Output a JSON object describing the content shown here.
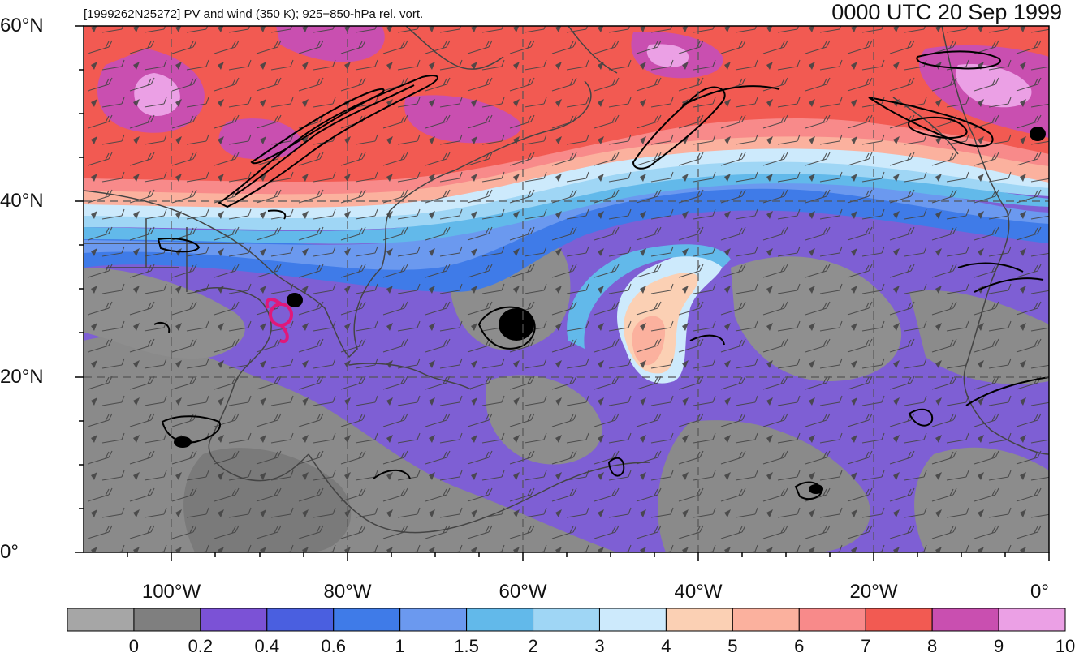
{
  "title_left": "[1999262N25272] PV and wind (350 K); 925−850-hPa rel. vort.",
  "title_right": "0000 UTC 20 Sep 1999",
  "lat_labels": [
    "60°N",
    "40°N",
    "20°N",
    "0°"
  ],
  "lon_labels": [
    "100°W",
    "80°W",
    "60°W",
    "40°W",
    "20°W",
    "0°"
  ],
  "colorbar": {
    "labels": [
      "0",
      "0.2",
      "0.4",
      "0.6",
      "1",
      "1.5",
      "2",
      "3",
      "4",
      "5",
      "6",
      "7",
      "8",
      "9",
      "10"
    ],
    "colors": [
      "#a6a6a6",
      "#7f7f7f",
      "#7b52d6",
      "#4a5fe0",
      "#3f7be8",
      "#6b99ef",
      "#62b9ea",
      "#9fd6f5",
      "#cdeafc",
      "#fbd0b4",
      "#fbb19e",
      "#f88a8a",
      "#f25a52",
      "#c94fb0",
      "#eba0e5"
    ]
  },
  "colors": {
    "vorticity_contour": "#000000",
    "storm_track": "#e0187a",
    "coastline": "#444444",
    "gridline": "#555555"
  },
  "icons": {
    "storm_symbol": "tropical-cyclone-symbol",
    "wind": "wind-barbs"
  }
}
